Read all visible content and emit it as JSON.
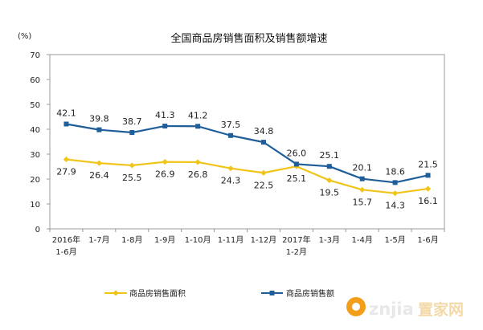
{
  "chart_data": {
    "type": "line",
    "title": "全国商品房销售面积及销售额增速",
    "y_unit": "(%)",
    "ylim": [
      0,
      70
    ],
    "y_ticks": [
      "0",
      "10",
      "20",
      "30",
      "40",
      "50",
      "60",
      "70"
    ],
    "categories": [
      [
        "2016年",
        "1-6月"
      ],
      [
        "1-7月"
      ],
      [
        "1-8月"
      ],
      [
        "1-9月"
      ],
      [
        "1-10月"
      ],
      [
        "1-11月"
      ],
      [
        "1-12月"
      ],
      [
        "2017年",
        "1-2月"
      ],
      [
        "1-3月"
      ],
      [
        "1-4月"
      ],
      [
        "1-5月"
      ],
      [
        "1-6月"
      ]
    ],
    "grid": false,
    "legend_position": "bottom",
    "series": [
      {
        "name": "商品房销售面积",
        "color": "#F0C419",
        "marker": "diamond",
        "values": [
          27.9,
          26.4,
          25.5,
          26.9,
          26.8,
          24.3,
          22.5,
          25.1,
          19.5,
          15.7,
          14.3,
          16.1
        ],
        "labels": [
          "27.9",
          "26.4",
          "25.5",
          "26.9",
          "26.8",
          "24.3",
          "22.5",
          "25.1",
          "19.5",
          "15.7",
          "14.3",
          "16.1"
        ]
      },
      {
        "name": "商品房销售额",
        "color": "#1F5E99",
        "marker": "square",
        "values": [
          42.1,
          39.8,
          38.7,
          41.3,
          41.2,
          37.5,
          34.8,
          26.0,
          25.1,
          20.1,
          18.6,
          21.5
        ],
        "labels": [
          "42.1",
          "39.8",
          "38.7",
          "41.3",
          "41.2",
          "37.5",
          "34.8",
          "26.0",
          "25.1",
          "20.1",
          "18.6",
          "21.5"
        ]
      }
    ]
  },
  "watermark": {
    "brand": "znjia",
    "cn_text": "置家网"
  }
}
